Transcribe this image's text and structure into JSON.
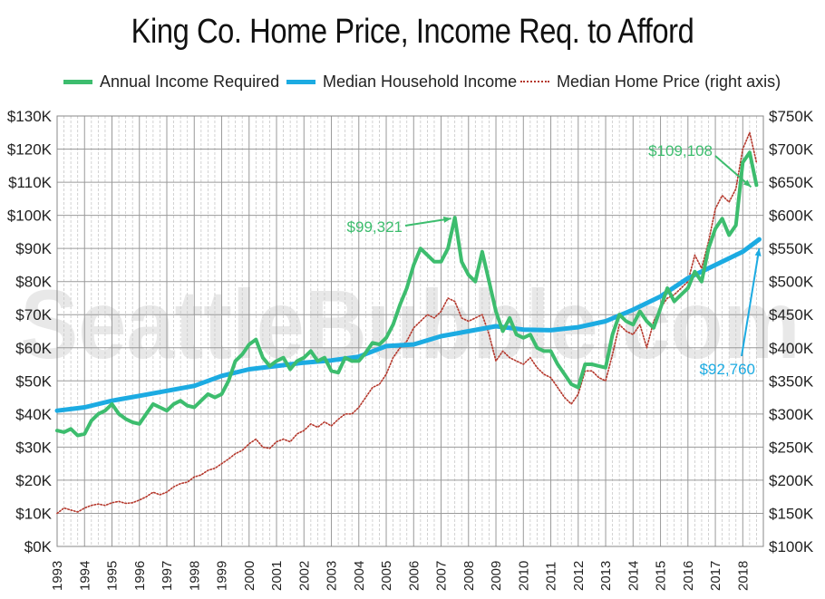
{
  "chart_data": {
    "type": "line",
    "title": "King Co. Home Price, Income Req. to Afford",
    "watermark": "SeattleBubble.com",
    "left_axis": {
      "range": [
        0,
        130000
      ],
      "ticks": [
        "$0K",
        "$10K",
        "$20K",
        "$30K",
        "$40K",
        "$50K",
        "$60K",
        "$70K",
        "$80K",
        "$90K",
        "$100K",
        "$110K",
        "$120K",
        "$130K"
      ]
    },
    "right_axis": {
      "range": [
        100000,
        750000
      ],
      "ticks": [
        "$100K",
        "$150K",
        "$200K",
        "$250K",
        "$300K",
        "$350K",
        "$400K",
        "$450K",
        "$500K",
        "$550K",
        "$600K",
        "$650K",
        "$700K",
        "$750K"
      ]
    },
    "x_axis": {
      "range": [
        1993.0,
        2018.75
      ],
      "tick_labels": [
        "1993",
        "1994",
        "1995",
        "1996",
        "1997",
        "1998",
        "1999",
        "2000",
        "2001",
        "2002",
        "2003",
        "2004",
        "2005",
        "2006",
        "2007",
        "2008",
        "2009",
        "2010",
        "2011",
        "2012",
        "2013",
        "2014",
        "2015",
        "2016",
        "2017",
        "2018"
      ]
    },
    "grid": true,
    "legend_position": "top",
    "series": [
      {
        "name": "Annual Income Required",
        "axis": "left",
        "color": "#3dbd6e",
        "style": "solid",
        "x": [
          1993.0,
          1993.25,
          1993.5,
          1993.75,
          1994.0,
          1994.25,
          1994.5,
          1994.75,
          1995.0,
          1995.25,
          1995.5,
          1995.75,
          1996.0,
          1996.25,
          1996.5,
          1996.75,
          1997.0,
          1997.25,
          1997.5,
          1997.75,
          1998.0,
          1998.25,
          1998.5,
          1998.75,
          1999.0,
          1999.25,
          1999.5,
          1999.75,
          2000.0,
          2000.25,
          2000.5,
          2000.75,
          2001.0,
          2001.25,
          2001.5,
          2001.75,
          2002.0,
          2002.25,
          2002.5,
          2002.75,
          2003.0,
          2003.25,
          2003.5,
          2003.75,
          2004.0,
          2004.25,
          2004.5,
          2004.75,
          2005.0,
          2005.25,
          2005.5,
          2005.75,
          2006.0,
          2006.25,
          2006.5,
          2006.75,
          2007.0,
          2007.25,
          2007.5,
          2007.75,
          2008.0,
          2008.25,
          2008.5,
          2008.75,
          2009.0,
          2009.25,
          2009.5,
          2009.75,
          2010.0,
          2010.25,
          2010.5,
          2010.75,
          2011.0,
          2011.25,
          2011.5,
          2011.75,
          2012.0,
          2012.25,
          2012.5,
          2012.75,
          2013.0,
          2013.25,
          2013.5,
          2013.75,
          2014.0,
          2014.25,
          2014.5,
          2014.75,
          2015.0,
          2015.25,
          2015.5,
          2015.75,
          2016.0,
          2016.25,
          2016.5,
          2016.75,
          2017.0,
          2017.25,
          2017.5,
          2017.75,
          2018.0,
          2018.25,
          2018.5
        ],
        "values": [
          35000,
          34500,
          35500,
          33500,
          34000,
          38000,
          40000,
          41000,
          43000,
          40000,
          38500,
          37500,
          37000,
          40000,
          43000,
          42000,
          41000,
          43000,
          44000,
          42500,
          42000,
          44000,
          46000,
          45000,
          46000,
          50000,
          56000,
          58000,
          61000,
          62500,
          57000,
          54500,
          56000,
          57000,
          53500,
          56000,
          57000,
          59000,
          56000,
          57000,
          53000,
          52500,
          57000,
          56000,
          56000,
          58500,
          61500,
          61000,
          63000,
          67000,
          73000,
          78000,
          85000,
          90000,
          88000,
          86000,
          86000,
          90000,
          99321,
          86000,
          82000,
          80000,
          89000,
          80000,
          71000,
          65000,
          69000,
          64000,
          63000,
          64000,
          60000,
          59000,
          59000,
          55000,
          52000,
          49000,
          48000,
          55000,
          55000,
          54500,
          54000,
          64000,
          70000,
          68000,
          67000,
          71000,
          68000,
          66000,
          72000,
          78000,
          74000,
          76000,
          78000,
          83000,
          80000,
          90000,
          96000,
          99000,
          94000,
          97000,
          116000,
          119000,
          109108
        ]
      },
      {
        "name": "Median Household Income",
        "axis": "left",
        "color": "#1cabe2",
        "style": "solid",
        "x": [
          1993.0,
          1994.0,
          1995.0,
          1996.0,
          1997.0,
          1998.0,
          1999.0,
          2000.0,
          2001.0,
          2002.0,
          2003.0,
          2004.0,
          2005.0,
          2006.0,
          2007.0,
          2008.0,
          2009.0,
          2010.0,
          2011.0,
          2012.0,
          2013.0,
          2014.0,
          2015.0,
          2016.0,
          2017.0,
          2018.0,
          2018.6
        ],
        "values": [
          41000,
          42000,
          44000,
          45500,
          47000,
          48500,
          51500,
          53500,
          54500,
          55500,
          56200,
          57300,
          60500,
          61000,
          63500,
          65000,
          66500,
          65500,
          65300,
          66200,
          68000,
          71500,
          75500,
          81000,
          85000,
          89000,
          92760
        ]
      },
      {
        "name": "Median Home Price (right axis)",
        "axis": "right",
        "color": "#b5382c",
        "style": "dotted",
        "x": [
          1993.0,
          1993.25,
          1993.5,
          1993.75,
          1994.0,
          1994.25,
          1994.5,
          1994.75,
          1995.0,
          1995.25,
          1995.5,
          1995.75,
          1996.0,
          1996.25,
          1996.5,
          1996.75,
          1997.0,
          1997.25,
          1997.5,
          1997.75,
          1998.0,
          1998.25,
          1998.5,
          1998.75,
          1999.0,
          1999.25,
          1999.5,
          1999.75,
          2000.0,
          2000.25,
          2000.5,
          2000.75,
          2001.0,
          2001.25,
          2001.5,
          2001.75,
          2002.0,
          2002.25,
          2002.5,
          2002.75,
          2003.0,
          2003.25,
          2003.5,
          2003.75,
          2004.0,
          2004.25,
          2004.5,
          2004.75,
          2005.0,
          2005.25,
          2005.5,
          2005.75,
          2006.0,
          2006.25,
          2006.5,
          2006.75,
          2007.0,
          2007.25,
          2007.5,
          2007.75,
          2008.0,
          2008.25,
          2008.5,
          2008.75,
          2009.0,
          2009.25,
          2009.5,
          2009.75,
          2010.0,
          2010.25,
          2010.5,
          2010.75,
          2011.0,
          2011.25,
          2011.5,
          2011.75,
          2012.0,
          2012.25,
          2012.5,
          2012.75,
          2013.0,
          2013.25,
          2013.5,
          2013.75,
          2014.0,
          2014.25,
          2014.5,
          2014.75,
          2015.0,
          2015.25,
          2015.5,
          2015.75,
          2016.0,
          2016.25,
          2016.5,
          2016.75,
          2017.0,
          2017.25,
          2017.5,
          2017.75,
          2018.0,
          2018.25,
          2018.5
        ],
        "values": [
          150000,
          158000,
          155000,
          152000,
          158000,
          162000,
          164000,
          162000,
          166000,
          168000,
          165000,
          166000,
          170000,
          175000,
          182000,
          178000,
          182000,
          190000,
          195000,
          197000,
          205000,
          208000,
          215000,
          218000,
          225000,
          232000,
          240000,
          245000,
          255000,
          262000,
          250000,
          248000,
          258000,
          262000,
          258000,
          270000,
          275000,
          285000,
          280000,
          288000,
          282000,
          292000,
          300000,
          300000,
          310000,
          325000,
          340000,
          345000,
          360000,
          385000,
          400000,
          410000,
          430000,
          440000,
          450000,
          445000,
          455000,
          475000,
          470000,
          445000,
          440000,
          445000,
          450000,
          420000,
          380000,
          395000,
          385000,
          380000,
          375000,
          385000,
          370000,
          360000,
          355000,
          340000,
          325000,
          315000,
          330000,
          365000,
          365000,
          355000,
          350000,
          390000,
          435000,
          425000,
          420000,
          435000,
          400000,
          440000,
          460000,
          475000,
          480000,
          490000,
          500000,
          540000,
          520000,
          560000,
          610000,
          630000,
          620000,
          640000,
          700000,
          725000,
          680000
        ]
      }
    ],
    "annotations": [
      {
        "text": "$99,321",
        "color": "#3dbd6e",
        "x": 2007.5,
        "value": 99321,
        "axis": "left"
      },
      {
        "text": "$109,108",
        "color": "#3dbd6e",
        "x": 2018.5,
        "value": 109108,
        "axis": "left"
      },
      {
        "text": "$92,760",
        "color": "#1cabe2",
        "x": 2018.6,
        "value": 92760,
        "axis": "left"
      }
    ]
  }
}
